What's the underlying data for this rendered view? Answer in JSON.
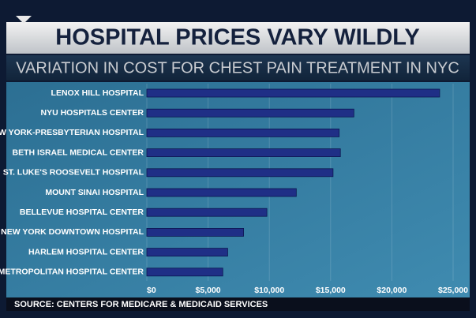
{
  "chart_data": {
    "type": "hbar",
    "title": "HOSPITAL PRICES VARY WILDLY",
    "subtitle": "VARIATION IN COST FOR CHEST PAIN TREATMENT IN NYC",
    "source": "SOURCE: CENTERS FOR MEDICARE & MEDICAID SERVICES",
    "categories": [
      "LENOX HILL HOSPITAL",
      "NYU HOSPITALS CENTER",
      "NEW YORK-PRESBYTERIAN HOSPITAL",
      "BETH ISRAEL MEDICAL CENTER",
      "ST. LUKE'S ROOSEVELT HOSPITAL",
      "MOUNT SINAI HOSPITAL",
      "BELLEVUE HOSPITAL CENTER",
      "NEW YORK DOWNTOWN HOSPITAL",
      "HARLEM HOSPITAL CENTER",
      "METROPOLITAN HOSPITAL CENTER"
    ],
    "values": [
      23900,
      16900,
      15700,
      15800,
      15200,
      12200,
      9800,
      7900,
      6600,
      6200
    ],
    "color": "#1f2f86",
    "xlim": [
      0,
      25000
    ],
    "xticks": [
      {
        "value": 0,
        "label": "$0"
      },
      {
        "value": 5000,
        "label": "$5,000"
      },
      {
        "value": 10000,
        "label": "$10,000"
      },
      {
        "value": 15000,
        "label": "$15,000"
      },
      {
        "value": 20000,
        "label": "$20,000"
      },
      {
        "value": 25000,
        "label": "$25,000"
      }
    ],
    "grid": true
  }
}
